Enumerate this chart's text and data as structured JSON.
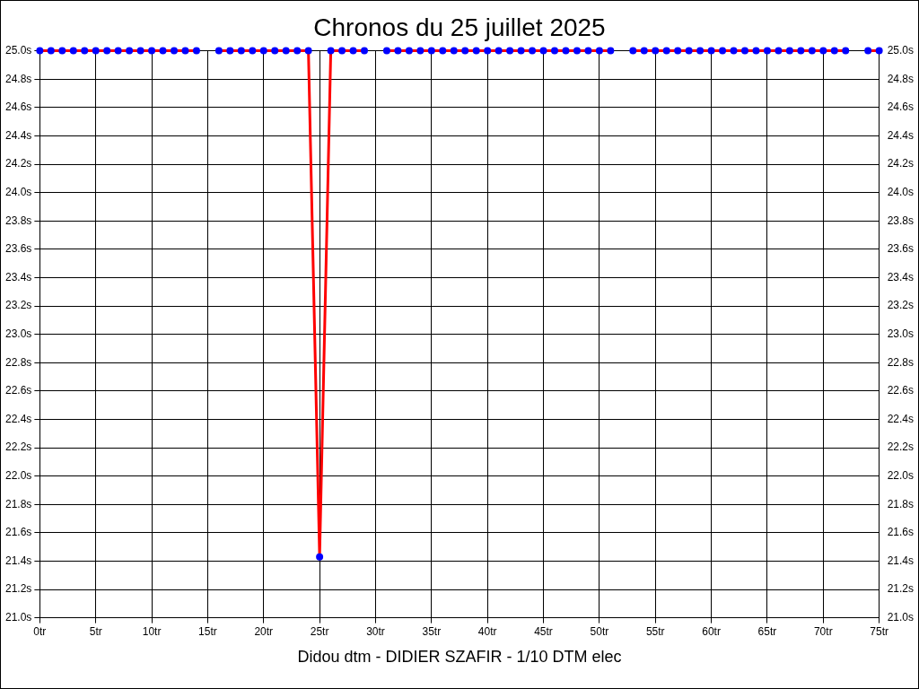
{
  "chart_data": {
    "type": "line",
    "title": "Chronos du 25 juillet 2025",
    "annotations": [
      "Didou dtm - DIDIER SZAFIR - 1/10 DTM elec"
    ],
    "x": [
      0,
      1,
      2,
      3,
      4,
      5,
      6,
      7,
      8,
      9,
      10,
      11,
      12,
      13,
      14,
      15,
      16,
      17,
      18,
      19,
      20,
      21,
      22,
      23,
      24,
      25,
      26,
      27,
      28,
      29,
      30,
      31,
      32,
      33,
      34,
      35,
      36,
      37,
      38,
      39,
      40,
      41,
      42,
      43,
      44,
      45,
      46,
      47,
      48,
      49,
      50,
      51,
      52,
      53,
      54,
      55,
      56,
      57,
      58,
      59,
      60,
      61,
      62,
      63,
      64,
      65,
      66,
      67,
      68,
      69,
      70,
      71,
      72,
      73,
      74,
      75
    ],
    "series": [
      {
        "color": "#ff0000",
        "values": [
          25.0,
          25.0,
          25.0,
          25.0,
          25.0,
          25.0,
          25.0,
          25.0,
          25.0,
          25.0,
          25.0,
          25.0,
          25.0,
          25.0,
          25.0,
          null,
          25.0,
          25.0,
          25.0,
          25.0,
          25.0,
          25.0,
          25.0,
          25.0,
          25.0,
          21.43,
          25.0,
          25.0,
          25.0,
          25.0,
          null,
          25.0,
          25.0,
          25.0,
          25.0,
          25.0,
          25.0,
          25.0,
          25.0,
          25.0,
          25.0,
          25.0,
          25.0,
          25.0,
          25.0,
          25.0,
          25.0,
          25.0,
          25.0,
          25.0,
          25.0,
          25.0,
          null,
          25.0,
          25.0,
          25.0,
          25.0,
          25.0,
          25.0,
          25.0,
          25.0,
          25.0,
          25.0,
          25.0,
          25.0,
          25.0,
          25.0,
          25.0,
          25.0,
          25.0,
          25.0,
          25.0,
          25.0,
          null,
          25.0,
          25.0
        ]
      }
    ],
    "marker": "circle",
    "grid": true,
    "xlim": [
      0,
      75
    ],
    "xticks": [
      {
        "value": 0,
        "label": "0tr"
      },
      {
        "value": 5,
        "label": "5tr"
      },
      {
        "value": 10,
        "label": "10tr"
      },
      {
        "value": 15,
        "label": "15tr"
      },
      {
        "value": 20,
        "label": "20tr"
      },
      {
        "value": 25,
        "label": "25tr"
      },
      {
        "value": 30,
        "label": "30tr"
      },
      {
        "value": 35,
        "label": "35tr"
      },
      {
        "value": 40,
        "label": "40tr"
      },
      {
        "value": 45,
        "label": "45tr"
      },
      {
        "value": 50,
        "label": "50tr"
      },
      {
        "value": 55,
        "label": "55tr"
      },
      {
        "value": 60,
        "label": "60tr"
      },
      {
        "value": 65,
        "label": "65tr"
      },
      {
        "value": 70,
        "label": "70tr"
      },
      {
        "value": 75,
        "label": "75tr"
      }
    ],
    "ylim": [
      21.0,
      25.0
    ],
    "yticks": [
      {
        "value": 21.0,
        "label": "21.0s"
      },
      {
        "value": 21.2,
        "label": "21.2s"
      },
      {
        "value": 21.4,
        "label": "21.4s"
      },
      {
        "value": 21.6,
        "label": "21.6s"
      },
      {
        "value": 21.8,
        "label": "21.8s"
      },
      {
        "value": 22.0,
        "label": "22.0s"
      },
      {
        "value": 22.2,
        "label": "22.2s"
      },
      {
        "value": 22.4,
        "label": "22.4s"
      },
      {
        "value": 22.6,
        "label": "22.6s"
      },
      {
        "value": 22.8,
        "label": "22.8s"
      },
      {
        "value": 23.0,
        "label": "23.0s"
      },
      {
        "value": 23.2,
        "label": "23.2s"
      },
      {
        "value": 23.4,
        "label": "23.4s"
      },
      {
        "value": 23.6,
        "label": "23.6s"
      },
      {
        "value": 23.8,
        "label": "23.8s"
      },
      {
        "value": 24.0,
        "label": "24.0s"
      },
      {
        "value": 24.2,
        "label": "24.2s"
      },
      {
        "value": 24.4,
        "label": "24.4s"
      },
      {
        "value": 24.6,
        "label": "24.6s"
      },
      {
        "value": 24.8,
        "label": "24.8s"
      },
      {
        "value": 25.0,
        "label": "25.0s"
      }
    ],
    "y2lim": [
      21.0,
      25.0
    ],
    "y2ticks": [
      {
        "value": 21.0,
        "label": "21.0s"
      },
      {
        "value": 21.2,
        "label": "21.2s"
      },
      {
        "value": 21.4,
        "label": "21.4s"
      },
      {
        "value": 21.6,
        "label": "21.6s"
      },
      {
        "value": 21.8,
        "label": "21.8s"
      },
      {
        "value": 22.0,
        "label": "22.0s"
      },
      {
        "value": 22.2,
        "label": "22.2s"
      },
      {
        "value": 22.4,
        "label": "22.4s"
      },
      {
        "value": 22.6,
        "label": "22.6s"
      },
      {
        "value": 22.8,
        "label": "22.8s"
      },
      {
        "value": 23.0,
        "label": "23.0s"
      },
      {
        "value": 23.2,
        "label": "23.2s"
      },
      {
        "value": 23.4,
        "label": "23.4s"
      },
      {
        "value": 23.6,
        "label": "23.6s"
      },
      {
        "value": 23.8,
        "label": "23.8s"
      },
      {
        "value": 24.0,
        "label": "24.0s"
      },
      {
        "value": 24.2,
        "label": "24.2s"
      },
      {
        "value": 24.4,
        "label": "24.4s"
      },
      {
        "value": 24.6,
        "label": "24.6s"
      },
      {
        "value": 24.8,
        "label": "24.8s"
      },
      {
        "value": 25.0,
        "label": "25.0s"
      }
    ]
  }
}
